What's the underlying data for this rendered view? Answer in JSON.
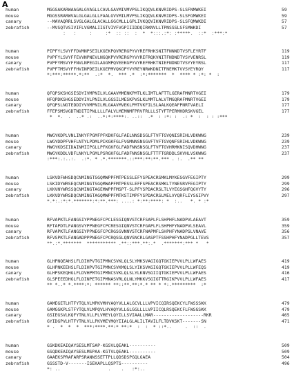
{
  "panel_label": "A",
  "highlight_colors": {
    "green": "#23e023",
    "magenta": "#d433d4"
  },
  "blocks": [
    {
      "rows": [
        {
          "species": "human",
          "seq": "MGGSAKARWAAGALGVAGLLCAVLGAVMIVMVPSLIKQQVLKNVRIDPS-SLSFNMWKEI",
          "num": "59"
        },
        {
          "species": "mouse",
          "seq": "MGGSSRARWVALGLGALGLLFAALGVVMILMVPSLIKQQVLKNVRIDPS-SLSFGMWKEI",
          "num": "59"
        },
        {
          "species": "canary",
          "seq": "--MAVAQRRLSVGLGALGLACALLGGCMLLLGPLIVKQQVIKNVRIDPS-SLSFQMWKDI",
          "num": "57"
        },
        {
          "species": "zebrafish",
          "seq": "--MVSQTVSIVIFLVGMALIIGTVIVFVGPIIIDDQIRKNVLLTPNSSSLSFSMWKDI",
          "num": "57"
        },
        {
          "species": "",
          "seq": "      :   :     :     :*  :: ::  :  *  *:::.:*: :*****.  ::*  :***:*",
          "num": ""
        }
      ]
    },
    {
      "rows": [
        {
          "species": "human",
          "seq": "PIPFYLSVYFFDVMNPSEILKGEKPQVRERGPYVYREFRHKSNITFNNNDTVSFLEYRTF",
          "num": "119"
        },
        {
          "species": "mouse",
          "seq": "PVPFYLSVYFFEVVNPNEVLNGQKPVVRERGPYVYREFRQKVNITFNDNDTVSYVENRSL",
          "num": "119"
        },
        {
          "species": "canary",
          "seq": "PVPFYMSVYFFNVLNPEGILAGGMPQVEEKGPYVYREFRHKTNIEFNDNDTVSYYEYRSL",
          "num": "117"
        },
        {
          "species": "zebrafish",
          "seq": "PVPFTMSVYFFHVINPDEILKGEPMVQKGPYVYREYNRWKDNITFNEMKTVVSYEYRQY",
          "num": "117"
        },
        {
          "species": "",
          "seq": "*:***:*****.*:**  .:*  *.  *** .*  :*:*******  *  **** * :*: *  :",
          "num": ""
        }
      ]
    },
    {
      "rows": [
        {
          "species": "human",
          "seq": "QFQPSKSHGSESDYIVMPNILVLGAAVMMENKPMTLKLIMTLAFTTLGERAFMNRTVGEI",
          "num": "179"
        },
        {
          "species": "mouse",
          "seq": "HFQPDKSHGSEDDYIVLPNILVLGGSILMESKPVSLKLMMTLALVTMGQRAFMNRTVGEI",
          "num": "179"
        },
        {
          "species": "canary",
          "seq": "QFQPSLNGTEDDIYVVMPNILMLGAAVMVEKLPMTVKFILSLAALKQEAFPNRTVAELI",
          "num": "177"
        },
        {
          "species": "zebrafish",
          "seq": "FFEPSMSVGDTNDITIPNLLLLFALVLMEMNMFPRVFRLLLSTYFTPERMHDRSKVGEL",
          "num": "177"
        },
        {
          "species": "",
          "seq": " *  *.  .  ..* .:  ..*:*:****:. ..::  .*  : :*: :  .: *  :  : : :***",
          "num": ""
        }
      ]
    },
    {
      "rows": [
        {
          "species": "human",
          "seq": "MWGYKDPLVNLINKYFPGMFPFKDKFGLFAELNNSDSGLFTVFTGVQNISRIHLVDKWNG",
          "num": "239"
        },
        {
          "species": "mouse",
          "seq": "LWGYDDPFVHFLNTYLPDMLPIKGKFGLFVGMNNSNSGVFTVFTGVQNFSRIHLVDKWNG",
          "num": "239"
        },
        {
          "species": "canary",
          "seq": "MWGYKDSIIDAINMIIPGLLPFKGKFGLFADFNNSNSGLFTVFTGVHRMKNISQVDHWNG",
          "num": "237"
        },
        {
          "species": "zebrafish",
          "seq": "MWGYKDDLVDFLNKYLPGMLPSRGKFGLFADFNNSNSGLFTTFTGRDDLSKVHLVSKWNG",
          "num": "237"
        },
        {
          "species": "",
          "seq": ":***:.:..:.  .:*. * .*.*******.::***:**:**.*** . :.  .** **",
          "num": ""
        }
      ]
    },
    {
      "rows": [
        {
          "species": "human",
          "seq": "LSKVDFWHSDQCNMINGTSGQMWPPFMTPESSLEFYSPEACRSMKLMYKESGVFEGIPTY",
          "num": "299"
        },
        {
          "species": "mouse",
          "seq": "LSKIDYWRSEQCNMINGTSGQMWAPFMTPESSLEFFSPEACRSMKLTYNESRVFEGIPTY",
          "num": "299"
        },
        {
          "species": "canary",
          "seq": "LKKVNYWRSSQCNMINGTAGEMWPPFMSPT-SLPFYSPDACRSLTLVYEGSGHFQGVYTY",
          "num": "296"
        },
        {
          "species": "zebrafish",
          "seq": "LKKVDYWRSDQCNMINGTAGQMWPPFMTKSTIMPFYSPDACRSLMELVYQRFLIYSGIPVY",
          "num": "297"
        },
        {
          "species": "",
          "seq": "*.*:.:*:*.*******:*:**.***: ....: *:**:****: *  :..   *. * :*",
          "num": ""
        }
      ]
    },
    {
      "rows": [
        {
          "species": "human",
          "seq": "RFVAPKTLFANGSIYPPNEGFCPCLESGIQNVSTCRFSAPLFLSHPHFLNADPVLAEAVT",
          "num": "359"
        },
        {
          "species": "mouse",
          "seq": "RFTAPDTLFANGSVYPPNEGFCPCRESGIQNVSTCRFGAPLFLSHPHFYNADPVLSEAVL",
          "num": "359"
        },
        {
          "species": "canary",
          "seq": "RFVAPKTLFANGSIYPPNEGFCPCRGSGVNNVSTCRFNAPMFLSHPHFYNADPSLVNAVE",
          "num": "356"
        },
        {
          "species": "zebrafish",
          "seq": "RFVSPKTLFANGADPPPNEGFCPCRQSGLQNVSNCRLGASPTFSSHPHFYNADPGLLTEVS",
          "num": "357"
        },
        {
          "species": "",
          "seq": "**.:*.*******  *********** .**::***.**:.*  .*******:*** *   *",
          "num": ""
        }
      ]
    },
    {
      "rows": [
        {
          "species": "human",
          "seq": "GLHPNQEAHSLFLDIHPVTGIPMNCSVKLQLSLYMKSVAGIGQTGKIEPVVLPLLWFAES",
          "num": "419"
        },
        {
          "species": "mouse",
          "seq": "GLHPNKEEHSLFLDIHPVTGIPMNCSVKMQLSLYIKSVKGIGQTGKIEPVVLPLLWFEQS",
          "num": "419"
        },
        {
          "species": "canary",
          "seq": "GLHPSKEQHGLFLDVHPMTGIPMNCSVKLQLSLYLKNVSGIIQTGKIEPVVLPLLWFAES",
          "num": "416"
        },
        {
          "species": "zebrafish",
          "seq": "GLSPEEEDHGLFLDINPETGIPMNASVRLQLNLYMKKVSGIGTTRGIKPVVLPLLWFAES",
          "num": "417"
        },
        {
          "species": "",
          "seq": "** *..* *.****:*: ****** **::**.**:*.* ** * *:.*********  :*",
          "num": ""
        }
      ]
    },
    {
      "rows": [
        {
          "species": "human",
          "seq": "GAMEGETLHTFYTQLVLMPKVMHYAQYVLLALGCVLLLVPVICQIRSQEKCYLFWSSSKK",
          "num": "479"
        },
        {
          "species": "mouse",
          "seq": "GAMGGKPLSTFYTQLVLMPQVLHYAQYVLLGLGGLLLLVPIICQLRSQEKCFLFWSGSKK",
          "num": "479"
        },
        {
          "species": "canary",
          "seq": "GSIEGSVLKQFYTNLVLLPLVMEYLQYILLSVIAALLMAR-------------------RKR",
          "num": "465"
        },
        {
          "species": "zebrafish",
          "seq": "GYIDGPVLHTFYTNLVLLPKVMEYMQYIIALGLALILTAVILFLTDVKSKT-------SN",
          "num": "471"
        },
        {
          "species": "",
          "seq": "* .  *  *  *  ***:****.**:* **:*  :  :  * ::*..     .  ::  .",
          "num": ""
        }
      ]
    },
    {
      "rows": [
        {
          "species": "human",
          "seq": "GSKDKEAIQAYSESLMTSAP-KGSVLQEAKL----------",
          "num": "509"
        },
        {
          "species": "mouse",
          "seq": "GSQDKEAIQAYSESLMSPAA-KGTVLQEAKL----------",
          "num": "509"
        },
        {
          "species": "canary",
          "seq": "GAAEKSPRAFARPSRANNSSETTPLLQDSDSPGQLGAEA",
          "num": "504"
        },
        {
          "species": "zebrafish",
          "seq": "GSSSTD-V-------ISEKAPLLQSPTS----------",
          "num": "496"
        },
        {
          "species": "",
          "seq": "*: ..                  .    .   :*:..",
          "num": ""
        }
      ]
    }
  ]
}
